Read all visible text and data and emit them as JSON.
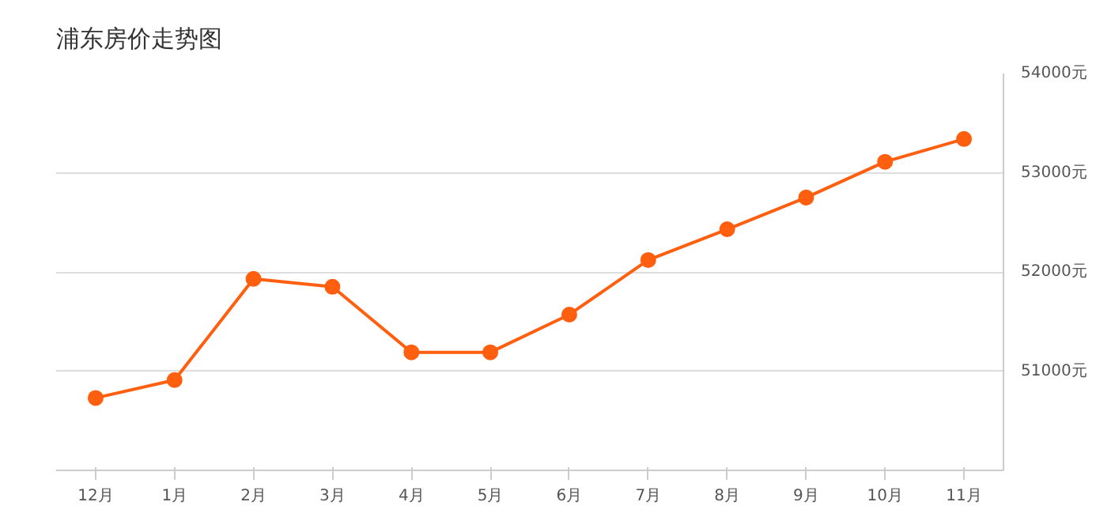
{
  "chart_data": {
    "type": "line",
    "title": "浦东房价走势图",
    "categories": [
      "12月",
      "1月",
      "2月",
      "3月",
      "4月",
      "5月",
      "6月",
      "7月",
      "8月",
      "9月",
      "10月",
      "11月"
    ],
    "series": [
      {
        "color": "#ff5f0f",
        "values": [
          50730,
          50910,
          51930,
          51850,
          51190,
          51190,
          51570,
          52120,
          52430,
          52750,
          53110,
          53340
        ]
      }
    ],
    "ylim": [
      50000,
      54000
    ],
    "yticks": [
      {
        "value": 51000,
        "label": "51000元"
      },
      {
        "value": 52000,
        "label": "52000元"
      },
      {
        "value": 53000,
        "label": "53000元"
      },
      {
        "value": 54000,
        "label": "54000元"
      }
    ],
    "grid": "y",
    "marker": "circle",
    "line_style": "solid"
  }
}
